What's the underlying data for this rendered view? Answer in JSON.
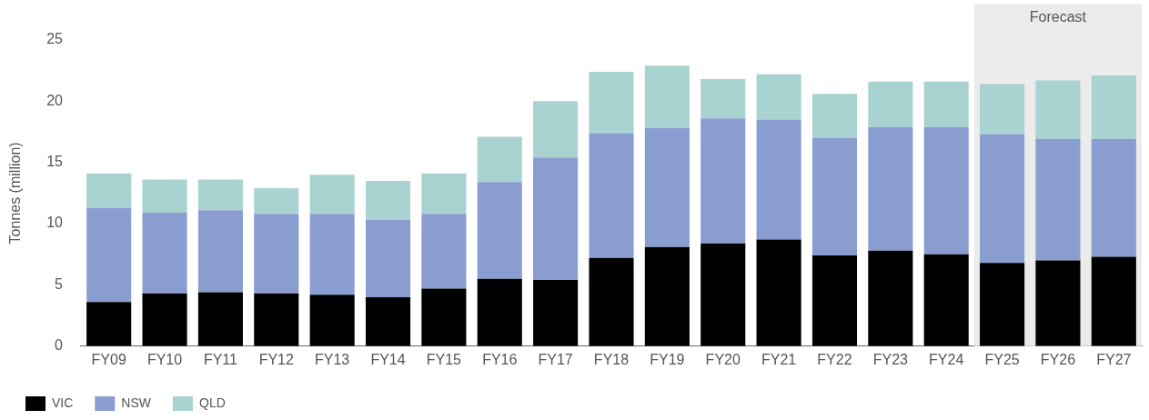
{
  "chart_data": {
    "type": "bar",
    "stacked": true,
    "ylabel": "Tonnes (million)",
    "categories": [
      "FY09",
      "FY10",
      "FY11",
      "FY12",
      "FY13",
      "FY14",
      "FY15",
      "FY16",
      "FY17",
      "FY18",
      "FY19",
      "FY20",
      "FY21",
      "FY22",
      "FY23",
      "FY24",
      "FY25",
      "FY26",
      "FY27"
    ],
    "series": [
      {
        "name": "VIC",
        "color": "#000000",
        "values": [
          3.6,
          4.3,
          4.4,
          4.3,
          4.2,
          4.0,
          4.7,
          5.5,
          5.4,
          7.2,
          8.1,
          8.4,
          8.7,
          7.4,
          7.8,
          7.5,
          6.8,
          7.0,
          7.3
        ]
      },
      {
        "name": "NSW",
        "color": "#8a9dd0",
        "values": [
          7.7,
          6.6,
          6.7,
          6.5,
          6.6,
          6.3,
          6.1,
          7.9,
          10.0,
          10.2,
          9.7,
          10.2,
          9.8,
          9.6,
          10.1,
          10.4,
          10.5,
          9.9,
          9.6
        ]
      },
      {
        "name": "QLD",
        "color": "#a8d3d0",
        "values": [
          2.8,
          2.7,
          2.5,
          2.1,
          3.2,
          3.2,
          3.3,
          3.7,
          4.6,
          5.0,
          5.1,
          3.2,
          3.7,
          3.6,
          3.7,
          3.7,
          4.1,
          4.8,
          5.2
        ]
      }
    ],
    "ylim": [
      0,
      25
    ],
    "yticks": [
      0,
      5,
      10,
      15,
      20,
      25
    ],
    "grid": false,
    "legend": "bottom left",
    "bands": [
      {
        "axis": "x",
        "from": "FY25",
        "to": "FY27",
        "label": "Forecast",
        "color": "#ebebeb"
      }
    ]
  }
}
